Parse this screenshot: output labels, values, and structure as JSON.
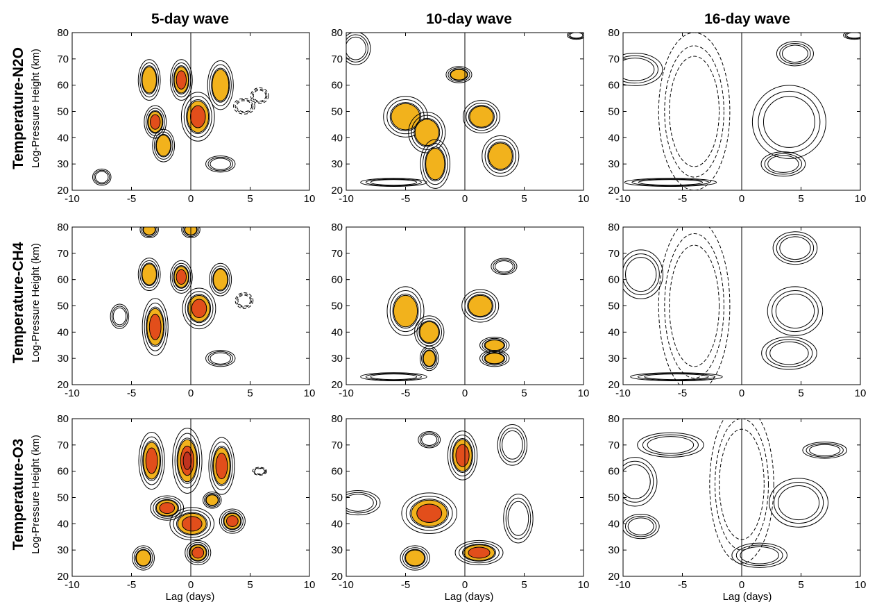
{
  "figure": {
    "columns": [
      "5-day wave",
      "10-day wave",
      "16-day wave"
    ],
    "rows": [
      "Temperature-N2O",
      "Temperature-CH4",
      "Temperature-O3"
    ],
    "ylabel": "Log-Pressure Height (km)",
    "xlabel": "Lag (days)",
    "colors": {
      "fill_orange": "#f2b21c",
      "fill_red": "#e24e1b",
      "fill_darkred": "#c0331f",
      "line": "#000000"
    }
  },
  "chart_data": {
    "type": "contour",
    "x": {
      "label": "Lag (days)",
      "range": [
        -10,
        10
      ],
      "ticks": [
        -10,
        -5,
        0,
        5,
        10
      ]
    },
    "y": {
      "label": "Log-Pressure Height (km)",
      "range": [
        20,
        80
      ],
      "ticks": [
        20,
        30,
        40,
        50,
        60,
        70,
        80
      ]
    },
    "zero_line_x": 0,
    "panels": [
      {
        "row": "Temperature-N2O",
        "col": "5-day wave",
        "features": [
          {
            "lag": -3.5,
            "z": 62,
            "rx": 0.6,
            "rz": 5,
            "sign": 1,
            "level": 1
          },
          {
            "lag": -0.8,
            "z": 62,
            "rx": 0.6,
            "rz": 5,
            "sign": 1,
            "level": 2
          },
          {
            "lag": 2.5,
            "z": 60,
            "rx": 0.7,
            "rz": 6,
            "sign": 1,
            "level": 1
          },
          {
            "lag": -3.0,
            "z": 46,
            "rx": 0.6,
            "rz": 4,
            "sign": 1,
            "level": 2
          },
          {
            "lag": 0.6,
            "z": 48,
            "rx": 0.9,
            "rz": 6,
            "sign": 1,
            "level": 2
          },
          {
            "lag": -2.3,
            "z": 37,
            "rx": 0.6,
            "rz": 4,
            "sign": 1,
            "level": 1
          },
          {
            "lag": 4.5,
            "z": 52,
            "rx": 0.6,
            "rz": 2,
            "sign": -1,
            "level": 0
          },
          {
            "lag": 5.8,
            "z": 56,
            "rx": 0.5,
            "rz": 2,
            "sign": -1,
            "level": 0
          },
          {
            "lag": 2.5,
            "z": 30,
            "rx": 0.8,
            "rz": 2,
            "sign": 1,
            "level": 0
          },
          {
            "lag": -7.5,
            "z": 25,
            "rx": 0.5,
            "rz": 2,
            "sign": 1,
            "level": 0
          }
        ]
      },
      {
        "row": "Temperature-N2O",
        "col": "10-day wave",
        "features": [
          {
            "lag": -5,
            "z": 48,
            "rx": 1.2,
            "rz": 5,
            "sign": 1,
            "level": 1
          },
          {
            "lag": -3.2,
            "z": 42,
            "rx": 1.0,
            "rz": 5,
            "sign": 1,
            "level": 1
          },
          {
            "lag": -2.5,
            "z": 30,
            "rx": 0.8,
            "rz": 6,
            "sign": 1,
            "level": 1
          },
          {
            "lag": -0.5,
            "z": 64,
            "rx": 0.7,
            "rz": 2,
            "sign": 1,
            "level": 1
          },
          {
            "lag": 1.4,
            "z": 48,
            "rx": 1.0,
            "rz": 4,
            "sign": 1,
            "level": 1
          },
          {
            "lag": 3.0,
            "z": 33,
            "rx": 1.0,
            "rz": 5,
            "sign": 1,
            "level": 1
          },
          {
            "lag": -6,
            "z": 23,
            "rx": 1.8,
            "rz": 1,
            "sign": 1,
            "level": 0
          },
          {
            "lag": -9.2,
            "z": 74,
            "rx": 0.8,
            "rz": 4,
            "sign": 1,
            "level": 0
          },
          {
            "lag": 9.4,
            "z": 79,
            "rx": 0.5,
            "rz": 1,
            "sign": 1,
            "level": 0
          }
        ]
      },
      {
        "row": "Temperature-N2O",
        "col": "16-day wave",
        "features": [
          {
            "lag": 4.5,
            "z": 72,
            "rx": 1.0,
            "rz": 3,
            "sign": 1,
            "level": 0
          },
          {
            "lag": 4.0,
            "z": 46,
            "rx": 2.0,
            "rz": 9,
            "sign": 1,
            "level": 0
          },
          {
            "lag": 3.5,
            "z": 30,
            "rx": 1.2,
            "rz": 3,
            "sign": 1,
            "level": 0
          },
          {
            "lag": -9.0,
            "z": 66,
            "rx": 1.5,
            "rz": 4,
            "sign": 1,
            "level": 0
          },
          {
            "lag": -4.0,
            "z": 50,
            "rx": 2.0,
            "rz": 20,
            "sign": -1,
            "level": 0
          },
          {
            "lag": -6.0,
            "z": 23,
            "rx": 2.5,
            "rz": 1,
            "sign": 1,
            "level": 0
          },
          {
            "lag": 9.5,
            "z": 79,
            "rx": 0.6,
            "rz": 1,
            "sign": 1,
            "level": 0
          }
        ]
      },
      {
        "row": "Temperature-CH4",
        "col": "5-day wave",
        "features": [
          {
            "lag": -3.5,
            "z": 62,
            "rx": 0.6,
            "rz": 4,
            "sign": 1,
            "level": 1
          },
          {
            "lag": -0.8,
            "z": 61,
            "rx": 0.6,
            "rz": 4,
            "sign": 1,
            "level": 2
          },
          {
            "lag": 2.5,
            "z": 60,
            "rx": 0.6,
            "rz": 4,
            "sign": 1,
            "level": 1
          },
          {
            "lag": -3.0,
            "z": 42,
            "rx": 0.7,
            "rz": 7,
            "sign": 1,
            "level": 2
          },
          {
            "lag": 0.7,
            "z": 49,
            "rx": 0.9,
            "rz": 5,
            "sign": 1,
            "level": 2
          },
          {
            "lag": -3.5,
            "z": 79,
            "rx": 0.5,
            "rz": 2,
            "sign": 1,
            "level": 1
          },
          {
            "lag": 0,
            "z": 79,
            "rx": 0.5,
            "rz": 2,
            "sign": 1,
            "level": 1
          },
          {
            "lag": -6.0,
            "z": 46,
            "rx": 0.5,
            "rz": 3,
            "sign": 1,
            "level": 0
          },
          {
            "lag": 4.5,
            "z": 52,
            "rx": 0.5,
            "rz": 2,
            "sign": -1,
            "level": 0
          },
          {
            "lag": 2.5,
            "z": 30,
            "rx": 0.8,
            "rz": 2,
            "sign": 1,
            "level": 0
          }
        ]
      },
      {
        "row": "Temperature-CH4",
        "col": "10-day wave",
        "features": [
          {
            "lag": -5,
            "z": 48,
            "rx": 1.0,
            "rz": 6,
            "sign": 1,
            "level": 1
          },
          {
            "lag": -3.0,
            "z": 40,
            "rx": 0.8,
            "rz": 4,
            "sign": 1,
            "level": 1
          },
          {
            "lag": -3.0,
            "z": 30,
            "rx": 0.5,
            "rz": 3,
            "sign": 1,
            "level": 1
          },
          {
            "lag": 1.3,
            "z": 50,
            "rx": 1.0,
            "rz": 4,
            "sign": 1,
            "level": 1
          },
          {
            "lag": 2.5,
            "z": 35,
            "rx": 0.8,
            "rz": 2,
            "sign": 1,
            "level": 1
          },
          {
            "lag": 2.5,
            "z": 30,
            "rx": 0.8,
            "rz": 2,
            "sign": 1,
            "level": 1
          },
          {
            "lag": 3.3,
            "z": 65,
            "rx": 0.7,
            "rz": 2,
            "sign": 1,
            "level": 0
          },
          {
            "lag": -6.0,
            "z": 23,
            "rx": 1.8,
            "rz": 1,
            "sign": 1,
            "level": 0
          }
        ]
      },
      {
        "row": "Temperature-CH4",
        "col": "16-day wave",
        "features": [
          {
            "lag": 4.5,
            "z": 72,
            "rx": 1.2,
            "rz": 4,
            "sign": 1,
            "level": 0
          },
          {
            "lag": 4.5,
            "z": 48,
            "rx": 1.5,
            "rz": 6,
            "sign": 1,
            "level": 0
          },
          {
            "lag": 4.0,
            "z": 32,
            "rx": 1.5,
            "rz": 4,
            "sign": 1,
            "level": 0
          },
          {
            "lag": -8.5,
            "z": 62,
            "rx": 1.2,
            "rz": 6,
            "sign": 1,
            "level": 0
          },
          {
            "lag": -4.0,
            "z": 50,
            "rx": 2.0,
            "rz": 22,
            "sign": -1,
            "level": 0
          },
          {
            "lag": -5.5,
            "z": 23,
            "rx": 2.5,
            "rz": 1,
            "sign": 1,
            "level": 0
          }
        ]
      },
      {
        "row": "Temperature-O3",
        "col": "5-day wave",
        "features": [
          {
            "lag": -3.3,
            "z": 64,
            "rx": 0.7,
            "rz": 7,
            "sign": 1,
            "level": 2
          },
          {
            "lag": -0.3,
            "z": 64,
            "rx": 0.8,
            "rz": 8,
            "sign": 1,
            "level": 3
          },
          {
            "lag": 2.6,
            "z": 62,
            "rx": 0.7,
            "rz": 7,
            "sign": 1,
            "level": 2
          },
          {
            "lag": -2.0,
            "z": 46,
            "rx": 0.9,
            "rz": 3,
            "sign": 1,
            "level": 2
          },
          {
            "lag": 0.1,
            "z": 40,
            "rx": 1.2,
            "rz": 4,
            "sign": 1,
            "level": 2
          },
          {
            "lag": 1.8,
            "z": 49,
            "rx": 0.5,
            "rz": 2,
            "sign": 1,
            "level": 1
          },
          {
            "lag": 3.5,
            "z": 41,
            "rx": 0.7,
            "rz": 3,
            "sign": 1,
            "level": 2
          },
          {
            "lag": 0.6,
            "z": 29,
            "rx": 0.7,
            "rz": 3,
            "sign": 1,
            "level": 2
          },
          {
            "lag": -4.0,
            "z": 27,
            "rx": 0.6,
            "rz": 3,
            "sign": 1,
            "level": 1
          },
          {
            "lag": 5.8,
            "z": 60,
            "rx": 0.4,
            "rz": 1,
            "sign": -1,
            "level": 0
          }
        ]
      },
      {
        "row": "Temperature-O3",
        "col": "10-day wave",
        "features": [
          {
            "lag": -0.2,
            "z": 66,
            "rx": 0.8,
            "rz": 6,
            "sign": 1,
            "level": 2
          },
          {
            "lag": -3.0,
            "z": 44,
            "rx": 1.5,
            "rz": 5,
            "sign": 1,
            "level": 2
          },
          {
            "lag": 1.2,
            "z": 29,
            "rx": 1.3,
            "rz": 3,
            "sign": 1,
            "level": 2
          },
          {
            "lag": -4.2,
            "z": 27,
            "rx": 0.8,
            "rz": 3,
            "sign": 1,
            "level": 1
          },
          {
            "lag": 4.5,
            "z": 42,
            "rx": 0.8,
            "rz": 6,
            "sign": 1,
            "level": 0
          },
          {
            "lag": 4.0,
            "z": 70,
            "rx": 0.8,
            "rz": 5,
            "sign": 1,
            "level": 0
          },
          {
            "lag": -3.0,
            "z": 72,
            "rx": 0.6,
            "rz": 2,
            "sign": 1,
            "level": 0
          },
          {
            "lag": -9.0,
            "z": 48,
            "rx": 1.2,
            "rz": 3,
            "sign": 1,
            "level": 0
          }
        ]
      },
      {
        "row": "Temperature-O3",
        "col": "16-day wave",
        "features": [
          {
            "lag": -6.0,
            "z": 70,
            "rx": 1.8,
            "rz": 3,
            "sign": 1,
            "level": 0
          },
          {
            "lag": -9.0,
            "z": 56,
            "rx": 1.2,
            "rz": 6,
            "sign": 1,
            "level": 0
          },
          {
            "lag": -8.5,
            "z": 39,
            "rx": 1.0,
            "rz": 3,
            "sign": 1,
            "level": 0
          },
          {
            "lag": 4.8,
            "z": 48,
            "rx": 1.6,
            "rz": 6,
            "sign": 1,
            "level": 0
          },
          {
            "lag": 1.5,
            "z": 28,
            "rx": 1.5,
            "rz": 3,
            "sign": 1,
            "level": 0
          },
          {
            "lag": 7.0,
            "z": 68,
            "rx": 1.2,
            "rz": 2,
            "sign": 1,
            "level": 0
          },
          {
            "lag": 0.0,
            "z": 55,
            "rx": 1.8,
            "rz": 20,
            "sign": -1,
            "level": 0
          }
        ]
      }
    ]
  }
}
